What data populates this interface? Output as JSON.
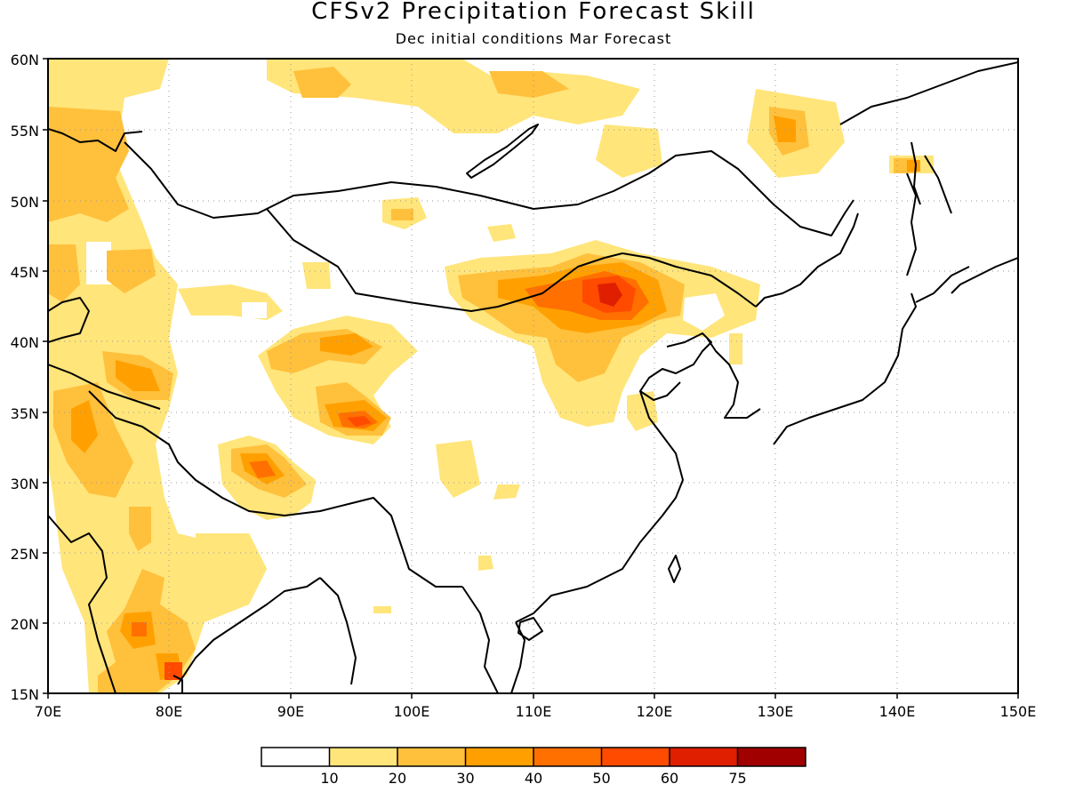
{
  "title": "CFSv2 Precipitation Forecast Skill",
  "subtitle": "Dec initial conditions  Mar Forecast",
  "map": {
    "lon_range": [
      70,
      150
    ],
    "lat_range": [
      15,
      60
    ],
    "lat_ticks": [
      "60N",
      "55N",
      "50N",
      "45N",
      "40N",
      "35N",
      "30N",
      "25N",
      "20N",
      "15N"
    ],
    "lon_ticks": [
      "70E",
      "80E",
      "90E",
      "100E",
      "110E",
      "120E",
      "130E",
      "140E",
      "150E"
    ],
    "grid": "dotted"
  },
  "colorbar": {
    "colors": [
      "#ffffff",
      "#ffe57a",
      "#ffc03c",
      "#ffa000",
      "#ff7000",
      "#ff4b00",
      "#e01e00",
      "#a00000"
    ],
    "labels": [
      "10",
      "20",
      "30",
      "40",
      "50",
      "60",
      "75"
    ]
  }
}
